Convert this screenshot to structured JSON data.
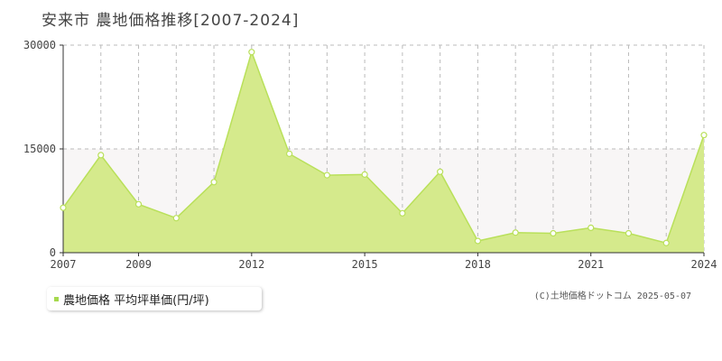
{
  "title": "安来市 農地価格推移[2007-2024]",
  "legend": {
    "label": "農地価格 平均坪単価(円/坪)"
  },
  "credit": "(C)土地価格ドットコム 2025-05-07",
  "colors": {
    "area_fill": "#d5ea8c",
    "line": "#b9e05a",
    "marker_stroke": "#b9e05a",
    "grid": "#bbbbbb",
    "band": "#f8f6f6"
  },
  "chart_data": {
    "type": "area",
    "x": [
      2007,
      2008,
      2009,
      2010,
      2011,
      2012,
      2013,
      2014,
      2015,
      2016,
      2017,
      2018,
      2019,
      2020,
      2021,
      2022,
      2023,
      2024
    ],
    "series": [
      {
        "name": "農地価格 平均坪単価(円/坪)",
        "values": [
          6500,
          14100,
          7000,
          5000,
          10200,
          29000,
          14300,
          11200,
          11300,
          5700,
          11700,
          1700,
          2900,
          2800,
          3600,
          2800,
          1400,
          17000
        ]
      }
    ],
    "x_tick_labels": [
      "2007",
      "2009",
      "2012",
      "2015",
      "2018",
      "2021",
      "2024"
    ],
    "y_tick_labels": [
      "0",
      "15000",
      "30000"
    ],
    "ylim": [
      0,
      30000
    ],
    "xlim": [
      2007,
      2024
    ],
    "grid": true,
    "legend_position": "bottom-left"
  }
}
